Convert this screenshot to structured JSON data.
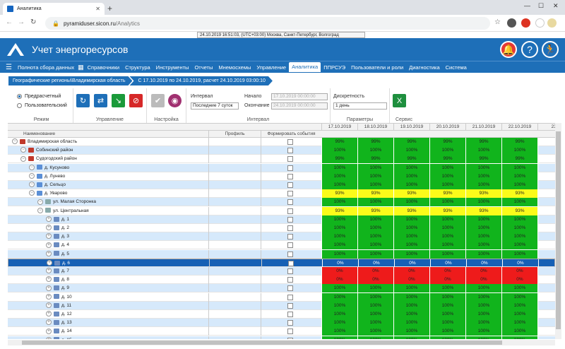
{
  "browser": {
    "tab_title": "Аналитика",
    "url_domain": "pyramiduser.sicon.ru",
    "url_path": "/Analytics"
  },
  "system_time": "24.10.2019 16:51:03, (UTC+03:00) Москва, Санкт-Петербург, Волгоград",
  "app": {
    "title": "Учет энергоресурсов"
  },
  "menu": [
    "Полнота сбора данных",
    "Справочники",
    "Структура",
    "Инструменты",
    "Отчеты",
    "Мнемосхемы",
    "Управление",
    "Аналитика",
    "ППРСУЭ",
    "Пользователи и роли",
    "Диагностика",
    "Система"
  ],
  "menu_active": "Аналитика",
  "breadcrumbs": [
    "Географические регионы\\Владимирская область",
    "С 17.10.2019 по 24.10.2019, расчет 24.10.2019 03:00:10"
  ],
  "toolbar": {
    "mode_options": [
      "Предрасчетный",
      "Пользовательский"
    ],
    "mode_label": "Режим",
    "control_label": "Управление",
    "settings_label": "Настройка",
    "interval_label": "Интервал",
    "interval_value": "Последние 7 суток",
    "start_label": "Начало",
    "start_value": "17.10.2019 00:00:00",
    "end_label": "Окончание",
    "end_value": "24.10.2019 00:00:00",
    "interval_group_label": "Интервал",
    "discreteness_label": "Дискретность",
    "discreteness_value": "1 день",
    "params_label": "Параметры",
    "service_label": "Сервис"
  },
  "grid": {
    "headers": {
      "name": "Наименование",
      "profile": "Профиль",
      "events": "Формировать события"
    },
    "dates": [
      "17.10.2019",
      "18.10.2019",
      "19.10.2019",
      "20.10.2019",
      "21.10.2019",
      "22.10.2019",
      "23.1"
    ],
    "rows": [
      {
        "name": "Владимирская область",
        "values": [
          "99%",
          "99%",
          "99%",
          "99%",
          "99%",
          "99%",
          ""
        ]
      },
      {
        "name": "Собинский район",
        "values": [
          "100%",
          "100%",
          "100%",
          "100%",
          "100%",
          "100%",
          ""
        ]
      },
      {
        "name": "Судогодский район",
        "values": [
          "99%",
          "99%",
          "99%",
          "99%",
          "99%",
          "99%",
          ""
        ]
      },
      {
        "name": "д. Кусуново",
        "values": [
          "100%",
          "100%",
          "100%",
          "100%",
          "100%",
          "100%",
          ""
        ]
      },
      {
        "name": "д. Лунево",
        "values": [
          "100%",
          "100%",
          "100%",
          "100%",
          "100%",
          "100%",
          ""
        ]
      },
      {
        "name": "д. Сельцо",
        "values": [
          "100%",
          "100%",
          "100%",
          "100%",
          "100%",
          "100%",
          ""
        ]
      },
      {
        "name": "д. Уварово",
        "values": [
          "93%",
          "93%",
          "93%",
          "93%",
          "93%",
          "93%",
          ""
        ]
      },
      {
        "name": "ул. Малая Сторонка",
        "values": [
          "100%",
          "100%",
          "100%",
          "100%",
          "100%",
          "100%",
          ""
        ]
      },
      {
        "name": "ул. Центральная",
        "values": [
          "93%",
          "93%",
          "93%",
          "93%",
          "93%",
          "93%",
          ""
        ]
      },
      {
        "name": "д. 1",
        "values": [
          "100%",
          "100%",
          "100%",
          "100%",
          "100%",
          "100%",
          ""
        ]
      },
      {
        "name": "д. 2",
        "values": [
          "100%",
          "100%",
          "100%",
          "100%",
          "100%",
          "100%",
          ""
        ]
      },
      {
        "name": "д. 3",
        "values": [
          "100%",
          "100%",
          "100%",
          "100%",
          "100%",
          "100%",
          ""
        ]
      },
      {
        "name": "д. 4",
        "values": [
          "100%",
          "100%",
          "100%",
          "100%",
          "100%",
          "100%",
          ""
        ]
      },
      {
        "name": "д. 5",
        "values": [
          "100%",
          "100%",
          "100%",
          "100%",
          "100%",
          "100%",
          ""
        ]
      },
      {
        "name": "д. 6",
        "values": [
          "0%",
          "0%",
          "0%",
          "0%",
          "0%",
          "0%",
          ""
        ]
      },
      {
        "name": "д. 7",
        "values": [
          "0%",
          "0%",
          "0%",
          "0%",
          "0%",
          "0%",
          ""
        ]
      },
      {
        "name": "д. 8",
        "values": [
          "0%",
          "0%",
          "0%",
          "0%",
          "0%",
          "0%",
          ""
        ]
      },
      {
        "name": "д. 9",
        "values": [
          "100%",
          "100%",
          "100%",
          "100%",
          "100%",
          "100%",
          ""
        ]
      },
      {
        "name": "д. 10",
        "values": [
          "100%",
          "100%",
          "100%",
          "100%",
          "100%",
          "100%",
          ""
        ]
      },
      {
        "name": "д. 11",
        "values": [
          "100%",
          "100%",
          "100%",
          "100%",
          "100%",
          "100%",
          ""
        ]
      },
      {
        "name": "д. 12",
        "values": [
          "100%",
          "100%",
          "100%",
          "100%",
          "100%",
          "100%",
          ""
        ]
      },
      {
        "name": "д. 13",
        "values": [
          "100%",
          "100%",
          "100%",
          "100%",
          "100%",
          "100%",
          ""
        ]
      },
      {
        "name": "д. 14",
        "values": [
          "100%",
          "100%",
          "100%",
          "100%",
          "100%",
          "100%",
          ""
        ]
      },
      {
        "name": "д. 15",
        "values": [
          "100%",
          "100%",
          "100%",
          "100%",
          "100%",
          "100%",
          ""
        ]
      }
    ],
    "selected_row": "д. 6"
  },
  "colors": {
    "green": "#11b41c",
    "yellow": "#fbfb1a",
    "red": "#ee1b1b",
    "header_blue": "#1e6fb8",
    "selected": "#1660b5",
    "alt_row": "#d6e9fb"
  }
}
